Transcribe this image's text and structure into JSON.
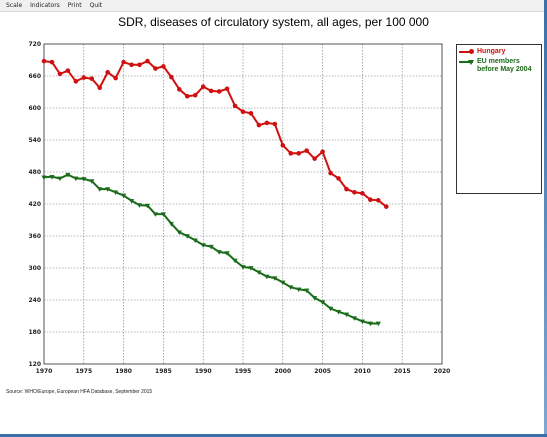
{
  "menu": [
    "Scale",
    "Indicators",
    "Print",
    "Quit"
  ],
  "chart_data": {
    "type": "line",
    "title": "SDR, diseases of circulatory system, all ages, per 100 000",
    "xlabel": "",
    "ylabel": "",
    "xlim": [
      1970,
      2020
    ],
    "ylim": [
      120,
      720
    ],
    "x_ticks": [
      1970,
      1975,
      1980,
      1985,
      1990,
      1995,
      2000,
      2005,
      2010,
      2015,
      2020
    ],
    "y_ticks": [
      120,
      180,
      240,
      300,
      360,
      420,
      480,
      540,
      600,
      660,
      720
    ],
    "grid": true,
    "legend_position": "top-right",
    "series": [
      {
        "name": "Hungary",
        "color": "#d01010",
        "marker": "circle",
        "x": [
          1970,
          1971,
          1972,
          1973,
          1974,
          1975,
          1976,
          1977,
          1978,
          1979,
          1980,
          1981,
          1982,
          1983,
          1984,
          1985,
          1986,
          1987,
          1988,
          1989,
          1990,
          1991,
          1992,
          1993,
          1994,
          1995,
          1996,
          1997,
          1998,
          1999,
          2000,
          2001,
          2002,
          2003,
          2004,
          2005,
          2006,
          2007,
          2008,
          2009,
          2010,
          2011,
          2012,
          2013
        ],
        "values": [
          688,
          686,
          664,
          670,
          650,
          657,
          655,
          638,
          667,
          656,
          686,
          681,
          681,
          688,
          674,
          678,
          658,
          635,
          622,
          624,
          640,
          632,
          631,
          636,
          604,
          593,
          590,
          568,
          572,
          570,
          530,
          515,
          515,
          520,
          505,
          518,
          478,
          468,
          448,
          442,
          440,
          428,
          427,
          415
        ]
      },
      {
        "name": "EU members before May 2004",
        "color": "#1a6b1a",
        "marker": "triangle",
        "x": [
          1970,
          1971,
          1972,
          1973,
          1974,
          1975,
          1976,
          1977,
          1978,
          1979,
          1980,
          1981,
          1982,
          1983,
          1984,
          1985,
          1986,
          1987,
          1988,
          1989,
          1990,
          1991,
          1992,
          1993,
          1994,
          1995,
          1996,
          1997,
          1998,
          1999,
          2000,
          2001,
          2002,
          2003,
          2004,
          2005,
          2006,
          2007,
          2008,
          2009,
          2010,
          2011,
          2012
        ],
        "values": [
          470,
          471,
          468,
          475,
          468,
          467,
          463,
          448,
          448,
          442,
          436,
          426,
          418,
          417,
          401,
          401,
          383,
          367,
          360,
          352,
          343,
          340,
          330,
          328,
          314,
          302,
          300,
          292,
          284,
          281,
          273,
          264,
          260,
          258,
          244,
          236,
          224,
          218,
          213,
          206,
          200,
          196,
          196
        ]
      }
    ]
  },
  "source": "Source: WHO/Europe, European HFA Database, September 2015"
}
